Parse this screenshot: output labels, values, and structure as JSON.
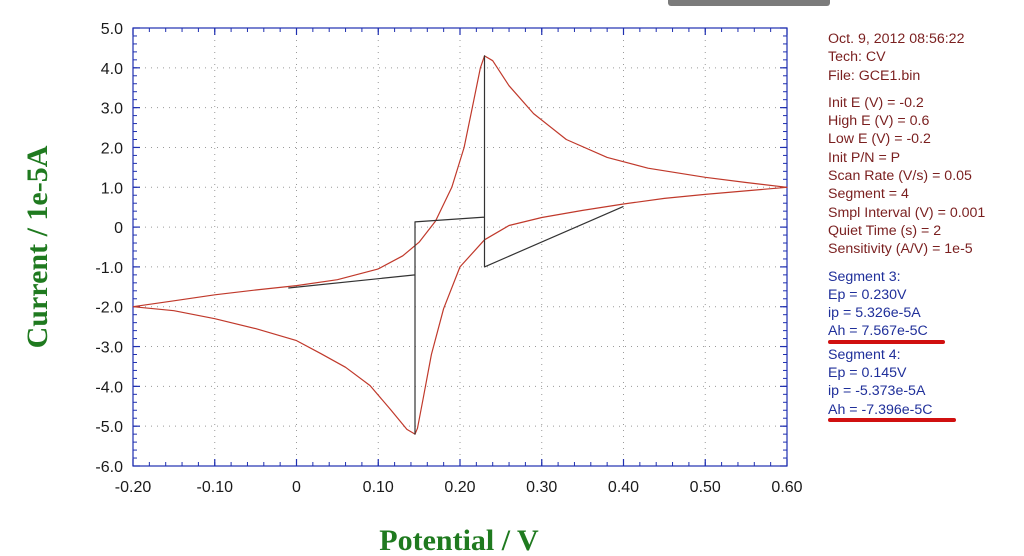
{
  "chart_data": {
    "type": "line",
    "xlabel": "Potential / V",
    "ylabel": "Current / 1e-5A",
    "xlim": [
      -0.2,
      0.6
    ],
    "ylim": [
      -6.0,
      5.0
    ],
    "x_ticks": [
      "-0.20",
      "-0.10",
      "0",
      "0.10",
      "0.20",
      "0.30",
      "0.40",
      "0.50",
      "0.60"
    ],
    "y_ticks": [
      "5.0",
      "4.0",
      "3.0",
      "2.0",
      "1.0",
      "0",
      "-1.0",
      "-2.0",
      "-3.0",
      "-4.0",
      "-5.0",
      "-6.0"
    ],
    "grid": true,
    "colors": {
      "cv_curve": "#c0392b",
      "baseline": "#333333",
      "axis": "#1e2fb0",
      "underline": "#d01010"
    },
    "series": [
      {
        "values": [
          [
            -0.2,
            -2.0
          ],
          [
            -0.15,
            -1.85
          ],
          [
            -0.1,
            -1.7
          ],
          [
            -0.05,
            -1.58
          ],
          [
            0,
            -1.47
          ],
          [
            0.05,
            -1.32
          ],
          [
            0.1,
            -1.05
          ],
          [
            0.13,
            -0.72
          ],
          [
            0.15,
            -0.38
          ],
          [
            0.17,
            0.15
          ],
          [
            0.19,
            1.0
          ],
          [
            0.205,
            2.0
          ],
          [
            0.215,
            3.0
          ],
          [
            0.225,
            4.0
          ],
          [
            0.23,
            4.3
          ],
          [
            0.24,
            4.18
          ],
          [
            0.26,
            3.55
          ],
          [
            0.29,
            2.85
          ],
          [
            0.33,
            2.2
          ],
          [
            0.38,
            1.75
          ],
          [
            0.43,
            1.48
          ],
          [
            0.5,
            1.25
          ],
          [
            0.55,
            1.12
          ],
          [
            0.6,
            1.0
          ],
          [
            0.56,
            0.93
          ],
          [
            0.5,
            0.82
          ],
          [
            0.45,
            0.72
          ],
          [
            0.4,
            0.58
          ],
          [
            0.35,
            0.42
          ],
          [
            0.3,
            0.24
          ],
          [
            0.26,
            0.04
          ],
          [
            0.23,
            -0.32
          ],
          [
            0.2,
            -1.0
          ],
          [
            0.18,
            -2.05
          ],
          [
            0.165,
            -3.2
          ],
          [
            0.155,
            -4.3
          ],
          [
            0.148,
            -5.05
          ],
          [
            0.145,
            -5.2
          ],
          [
            0.135,
            -5.08
          ],
          [
            0.115,
            -4.58
          ],
          [
            0.09,
            -3.98
          ],
          [
            0.06,
            -3.52
          ],
          [
            0.03,
            -3.18
          ],
          [
            0,
            -2.85
          ],
          [
            -0.05,
            -2.55
          ],
          [
            -0.1,
            -2.3
          ],
          [
            -0.15,
            -2.1
          ],
          [
            -0.2,
            -2.0
          ]
        ]
      },
      {
        "values": [
          [
            -0.01,
            -1.53
          ],
          [
            0.145,
            -1.2
          ],
          [
            0.145,
            -5.2
          ],
          [
            0.145,
            0.13
          ],
          [
            0.23,
            0.25
          ],
          [
            0.23,
            4.3
          ],
          [
            0.23,
            -1.0
          ],
          [
            0.4,
            0.52
          ]
        ]
      }
    ]
  },
  "info_panel": {
    "header": [
      "Oct. 9, 2012   08:56:22",
      "Tech: CV",
      "File: GCE1.bin"
    ],
    "parameters": [
      "Init E (V) = -0.2",
      "High E (V) = 0.6",
      "Low E (V) = -0.2",
      "Init P/N = P",
      "Scan Rate (V/s) = 0.05",
      "Segment = 4",
      "Smpl Interval (V) = 0.001",
      "Quiet Time (s) = 2",
      "Sensitivity (A/V) = 1e-5"
    ],
    "segment3": [
      "Segment 3:",
      "Ep = 0.230V",
      "ip = 5.326e-5A",
      "Ah = 7.567e-5C"
    ],
    "segment4": [
      "Segment 4:",
      "Ep = 0.145V",
      "ip = -5.373e-5A",
      "Ah = -7.396e-5C"
    ]
  }
}
